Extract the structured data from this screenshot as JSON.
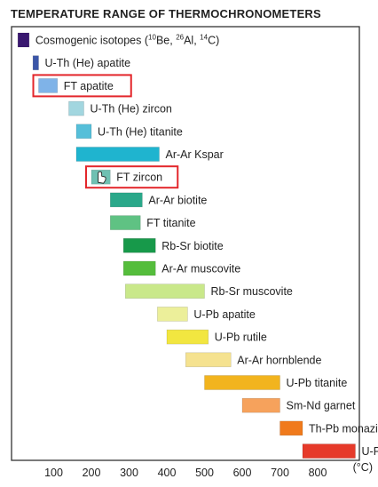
{
  "chart_data": {
    "type": "bar",
    "title": "TEMPERATURE RANGE OF THERMOCHRONOMETERS",
    "xlabel": "",
    "x_unit": "(°C)",
    "xlim": [
      0,
      820
    ],
    "xticks": [
      100,
      200,
      300,
      400,
      500,
      600,
      700,
      800
    ],
    "grid": false,
    "highlighted": [
      "FT apatite",
      "FT zircon"
    ],
    "highlight_color": "#e3262b",
    "cursor_icon": "hand-pointer-icon",
    "series": [
      {
        "label": "Cosmogenic isotopes",
        "label_suffix_parts": [
          " (",
          "10",
          "Be, ",
          "26",
          "Al, ",
          "14",
          "C)"
        ],
        "start": 5,
        "end": 35,
        "color": "#3a1870"
      },
      {
        "label": "U-Th (He) apatite",
        "start": 45,
        "end": 60,
        "color": "#3b56a8"
      },
      {
        "label": "FT apatite",
        "start": 60,
        "end": 110,
        "color": "#7fb3e8"
      },
      {
        "label": "U-Th (He) zircon",
        "start": 140,
        "end": 180,
        "color": "#a2d6df"
      },
      {
        "label": "U-Th (He) titanite",
        "start": 160,
        "end": 200,
        "color": "#56bfd9"
      },
      {
        "label": "Ar-Ar Kspar",
        "start": 160,
        "end": 380,
        "color": "#1fb4cf"
      },
      {
        "label": "FT zircon",
        "start": 200,
        "end": 250,
        "color": "#6fc0b2"
      },
      {
        "label": "Ar-Ar biotite",
        "start": 250,
        "end": 335,
        "color": "#2aa88a"
      },
      {
        "label": "FT titanite",
        "start": 250,
        "end": 330,
        "color": "#5fc283"
      },
      {
        "label": "Rb-Sr biotite",
        "start": 285,
        "end": 370,
        "color": "#17994a"
      },
      {
        "label": "Ar-Ar muscovite",
        "start": 285,
        "end": 370,
        "color": "#55bd3c"
      },
      {
        "label": "Rb-Sr muscovite",
        "start": 290,
        "end": 500,
        "color": "#c9e88a"
      },
      {
        "label": "U-Pb apatite",
        "start": 375,
        "end": 455,
        "color": "#ecef9a"
      },
      {
        "label": "U-Pb rutile",
        "start": 400,
        "end": 510,
        "color": "#f2e640"
      },
      {
        "label": "Ar-Ar hornblende",
        "start": 450,
        "end": 570,
        "color": "#f5e28f"
      },
      {
        "label": "U-Pb titanite",
        "start": 500,
        "end": 700,
        "color": "#f2b41e"
      },
      {
        "label": "Sm-Nd garnet",
        "start": 600,
        "end": 700,
        "color": "#f6a25c"
      },
      {
        "label": "Th-Pb monazite",
        "start": 700,
        "end": 760,
        "color": "#f07a1c"
      },
      {
        "label": "U-Pb zircon",
        "start": 760,
        "end": 900,
        "color": "#e63a2a"
      }
    ]
  }
}
